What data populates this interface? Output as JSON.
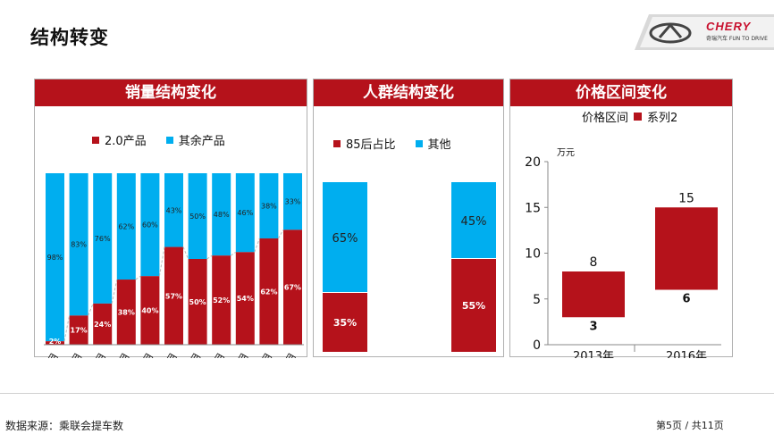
{
  "page": {
    "title": "结构转变",
    "source": "数据来源：乘联会提车数",
    "page_number": "第5页 / 共11页",
    "brand": "CHERY",
    "slogan": "奇瑞汽车  FUN TO DRIVE"
  },
  "colors": {
    "red": "#b5121b",
    "blue": "#00aeef",
    "header": "#b5121b"
  },
  "chart_data": [
    {
      "type": "bar",
      "stacked": true,
      "percent": true,
      "title": "销量结构变化",
      "categories": [
        "1月",
        "2月",
        "3月",
        "4月",
        "5月",
        "6月",
        "7月",
        "8月",
        "9月",
        "10月",
        "11月"
      ],
      "series": [
        {
          "name": "2.0产品",
          "values": [
            2,
            17,
            24,
            38,
            40,
            57,
            50,
            52,
            54,
            62,
            67
          ],
          "labels": [
            "2%",
            "17%",
            "24%",
            "38%",
            "40%",
            "57%",
            "50%",
            "52%",
            "54%",
            "62%",
            "67%"
          ]
        },
        {
          "name": "其余产品",
          "values": [
            98,
            83,
            76,
            62,
            60,
            43,
            50,
            48,
            46,
            38,
            33
          ],
          "labels": [
            "98%",
            "83%",
            "76%",
            "62%",
            "60%",
            "43%",
            "50%",
            "48%",
            "46%",
            "38%",
            "33%"
          ]
        }
      ],
      "ylim": [
        0,
        100
      ]
    },
    {
      "type": "bar",
      "stacked": true,
      "percent": true,
      "title": "人群结构变化",
      "categories": [
        "",
        ""
      ],
      "series": [
        {
          "name": "85后占比",
          "values": [
            35,
            55
          ],
          "labels": [
            "35%",
            "55%"
          ]
        },
        {
          "name": "其他",
          "values": [
            65,
            45
          ],
          "labels": [
            "65%",
            "45%"
          ]
        }
      ],
      "ylim": [
        0,
        100
      ]
    },
    {
      "type": "bar",
      "floating": true,
      "title": "价格区间变化",
      "legend": [
        "价格区间",
        "系列2"
      ],
      "ylabel": "万元",
      "categories": [
        "2013年",
        "2016年"
      ],
      "low": [
        3,
        6
      ],
      "high": [
        8,
        15
      ],
      "low_labels": [
        "3",
        "6"
      ],
      "high_labels": [
        "8",
        "15"
      ],
      "yticks": [
        "0",
        "5",
        "10",
        "15",
        "20"
      ],
      "ylim": [
        0,
        20
      ]
    }
  ]
}
